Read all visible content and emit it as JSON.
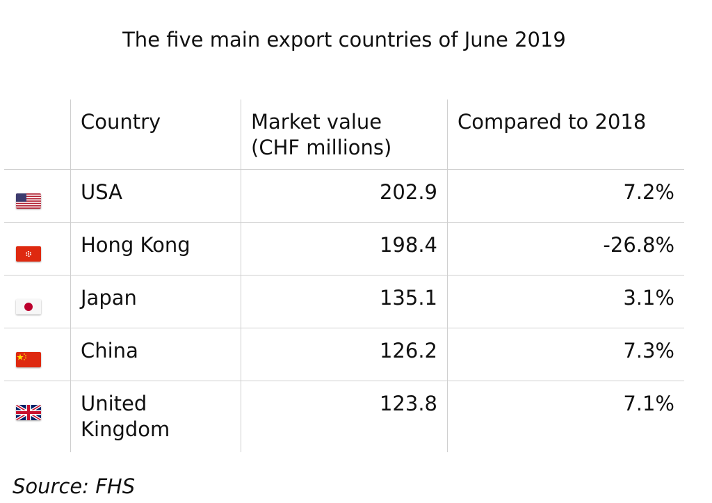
{
  "chart_data": {
    "type": "table",
    "title": "The five main export countries of June 2019",
    "columns": [
      "Country",
      "Market value\n(CHF millions)",
      "Compared to 2018"
    ],
    "rows": [
      {
        "flag": "us-flag-icon",
        "country": "USA",
        "value": "202.9",
        "change": "7.2%"
      },
      {
        "flag": "hk-flag-icon",
        "country": "Hong Kong",
        "value": "198.4",
        "change": "-26.8%"
      },
      {
        "flag": "jp-flag-icon",
        "country": "Japan",
        "value": "135.1",
        "change": "3.1%"
      },
      {
        "flag": "cn-flag-icon",
        "country": "China",
        "value": "126.2",
        "change": "7.3%"
      },
      {
        "flag": "gb-flag-icon",
        "country": "United\nKingdom",
        "value": "123.8",
        "change": "7.1%"
      }
    ],
    "source": "Source: FHS"
  }
}
